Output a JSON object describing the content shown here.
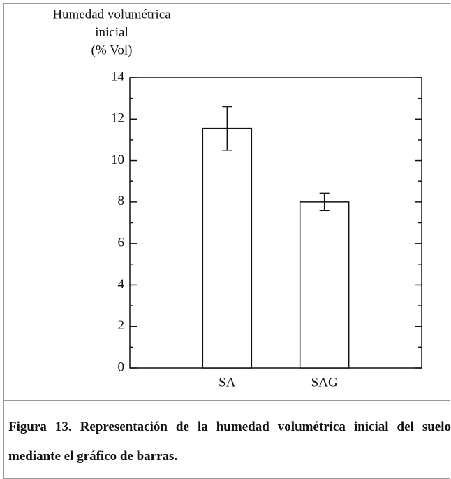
{
  "chart_data": {
    "type": "bar",
    "ylabel": [
      "Humedad volumétrica",
      "inicial",
      "(% Vol)"
    ],
    "categories": [
      "SA",
      "SAG"
    ],
    "values": [
      11.55,
      8.0
    ],
    "errors": [
      1.05,
      0.42
    ],
    "color": "#ffffff",
    "ylim": [
      0,
      14
    ],
    "yticks": [
      0,
      2,
      4,
      6,
      8,
      10,
      12,
      14
    ],
    "caption": "Figura 13. Representación de la humedad volumétrica inicial del suelo mediante el gráfico de barras."
  }
}
